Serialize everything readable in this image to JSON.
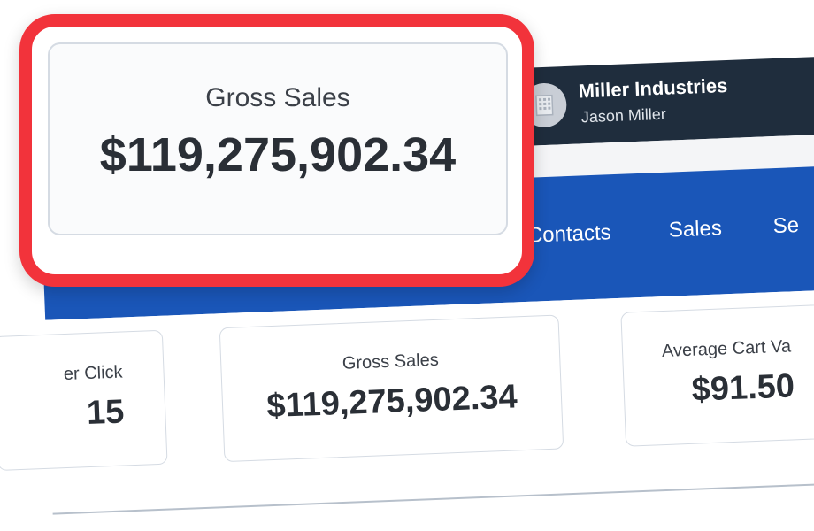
{
  "header": {
    "org_name": "Miller Industries",
    "user_name": "Jason Miller",
    "avatar_icon": "building-icon"
  },
  "nav": {
    "items": [
      {
        "label": "Contacts"
      },
      {
        "label": "Sales"
      },
      {
        "label": "Se"
      }
    ]
  },
  "metrics": {
    "left_card": {
      "label": "er Click",
      "value": "15"
    },
    "gross_sales": {
      "label": "Gross Sales",
      "value": "$119,275,902.34"
    },
    "average_cart": {
      "label": "Average Cart Va",
      "value": "$91.50"
    }
  },
  "callout": {
    "label": "Gross Sales",
    "value": "$119,275,902.34",
    "border_color": "#f2333b"
  },
  "colors": {
    "topbar": "#1f2d3d",
    "navbar": "#1a56b8"
  }
}
